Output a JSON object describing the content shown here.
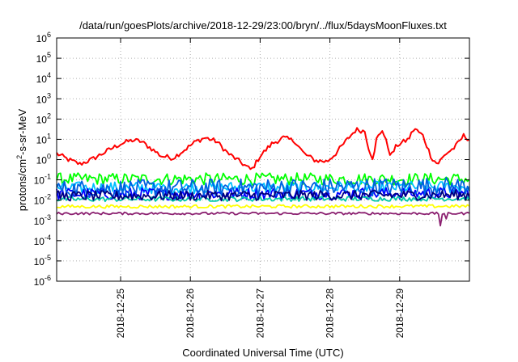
{
  "chart_data": {
    "type": "line",
    "title": "/data/run/goesPlots/archive/2018-12-29/23:00/bryn/../flux/5daysMoonFluxes.txt",
    "xlabel": "Coordinated Universal Time (UTC)",
    "ylabel": {
      "base": "protons/cm",
      "superscript": "2",
      "rest": "-s-sr-MeV"
    },
    "yscale": "log",
    "ylim": [
      1e-06,
      1000000.0
    ],
    "y_ticks": [
      {
        "base": "10",
        "exp": "-6",
        "value": 1e-06
      },
      {
        "base": "10",
        "exp": "-5",
        "value": 1e-05
      },
      {
        "base": "10",
        "exp": "-4",
        "value": 0.0001
      },
      {
        "base": "10",
        "exp": "-3",
        "value": 0.001
      },
      {
        "base": "10",
        "exp": "-2",
        "value": 0.01
      },
      {
        "base": "10",
        "exp": "-1",
        "value": 0.1
      },
      {
        "base": "10",
        "exp": "0",
        "value": 1
      },
      {
        "base": "10",
        "exp": "1",
        "value": 10
      },
      {
        "base": "10",
        "exp": "2",
        "value": 100
      },
      {
        "base": "10",
        "exp": "3",
        "value": 1000
      },
      {
        "base": "10",
        "exp": "4",
        "value": 10000
      },
      {
        "base": "10",
        "exp": "5",
        "value": 100000
      },
      {
        "base": "10",
        "exp": "6",
        "value": 1000000
      }
    ],
    "xlim": [
      "2018-12-24 02:00",
      "2018-12-30 00:00"
    ],
    "x_ticks": [
      {
        "label": "2018-12-25",
        "value": "2018-12-25 00:00"
      },
      {
        "label": "2018-12-26",
        "value": "2018-12-26 00:00"
      },
      {
        "label": "2018-12-27",
        "value": "2018-12-27 00:00"
      },
      {
        "label": "2018-12-28",
        "value": "2018-12-28 00:00"
      },
      {
        "label": "2018-12-29",
        "value": "2018-12-29 00:00"
      }
    ],
    "grid": true,
    "series": [
      {
        "color": "#ff0000",
        "noise": 0.12,
        "spikes": [],
        "points": [
          [
            "2018-12-24 02:00",
            2
          ],
          [
            "2018-12-24 06:00",
            1
          ],
          [
            "2018-12-24 10:00",
            0.6
          ],
          [
            "2018-12-24 14:00",
            1
          ],
          [
            "2018-12-24 20:00",
            3
          ],
          [
            "2018-12-25 00:00",
            6
          ],
          [
            "2018-12-25 04:00",
            9
          ],
          [
            "2018-12-25 07:00",
            8
          ],
          [
            "2018-12-25 10:00",
            4
          ],
          [
            "2018-12-25 14:00",
            1.5
          ],
          [
            "2018-12-25 18:00",
            1.2
          ],
          [
            "2018-12-25 22:00",
            3
          ],
          [
            "2018-12-26 02:00",
            8
          ],
          [
            "2018-12-26 05:00",
            12
          ],
          [
            "2018-12-26 09:00",
            8
          ],
          [
            "2018-12-26 13:00",
            2
          ],
          [
            "2018-12-26 17:00",
            0.8
          ],
          [
            "2018-12-26 21:00",
            0.3
          ],
          [
            "2018-12-27 00:00",
            1.5
          ],
          [
            "2018-12-27 04:00",
            6
          ],
          [
            "2018-12-27 08:00",
            12
          ],
          [
            "2018-12-27 12:00",
            8
          ],
          [
            "2018-12-27 15:00",
            2
          ],
          [
            "2018-12-27 19:00",
            0.9
          ],
          [
            "2018-12-27 23:00",
            0.8
          ],
          [
            "2018-12-28 02:00",
            2
          ],
          [
            "2018-12-28 06:00",
            10
          ],
          [
            "2018-12-28 09:00",
            30
          ],
          [
            "2018-12-28 12:00",
            25
          ],
          [
            "2018-12-28 13:30",
            3
          ],
          [
            "2018-12-28 15:00",
            1
          ],
          [
            "2018-12-28 16:00",
            10
          ],
          [
            "2018-12-28 18:00",
            30
          ],
          [
            "2018-12-28 21:00",
            1.5
          ],
          [
            "2018-12-28 23:00",
            5
          ],
          [
            "2018-12-29 03:00",
            10
          ],
          [
            "2018-12-29 05:00",
            35
          ],
          [
            "2018-12-29 08:00",
            15
          ],
          [
            "2018-12-29 11:00",
            1.2
          ],
          [
            "2018-12-29 13:00",
            0.6
          ],
          [
            "2018-12-29 16:00",
            2
          ],
          [
            "2018-12-29 19:00",
            4
          ],
          [
            "2018-12-29 22:00",
            15
          ],
          [
            "2018-12-30 00:00",
            10
          ]
        ]
      },
      {
        "color": "#00ff00",
        "noise": 0.3,
        "spikes": [],
        "points": [
          [
            "2018-12-24 02:00",
            0.11
          ],
          [
            "2018-12-30 00:00",
            0.11
          ]
        ]
      },
      {
        "color": "#00bfff",
        "noise": 0.3,
        "spikes": [],
        "points": [
          [
            "2018-12-24 02:00",
            0.04
          ],
          [
            "2018-12-30 00:00",
            0.045
          ]
        ]
      },
      {
        "color": "#0000ff",
        "noise": 0.3,
        "spikes": [],
        "points": [
          [
            "2018-12-24 02:00",
            0.02
          ],
          [
            "2018-12-30 00:00",
            0.022
          ]
        ]
      },
      {
        "color": "#0060e0",
        "noise": 0.45,
        "spikes": [],
        "points": [
          [
            "2018-12-24 02:00",
            0.035
          ],
          [
            "2018-12-30 00:00",
            0.05
          ]
        ]
      },
      {
        "color": "#00c8a8",
        "noise": 0.12,
        "spikes": [],
        "points": [
          [
            "2018-12-24 02:00",
            0.011
          ],
          [
            "2018-12-30 00:00",
            0.012
          ]
        ]
      },
      {
        "color": "#000080",
        "noise": 0.25,
        "spikes": [],
        "points": [
          [
            "2018-12-24 02:00",
            0.016
          ],
          [
            "2018-12-30 00:00",
            0.018
          ]
        ]
      },
      {
        "color": "#ffff00",
        "noise": 0.08,
        "spikes": [],
        "points": [
          [
            "2018-12-24 02:00",
            0.0048
          ],
          [
            "2018-12-30 00:00",
            0.005
          ]
        ]
      },
      {
        "color": "#8b2070",
        "noise": 0.06,
        "spikes": [
          [
            "2018-12-28 13:00",
            0.0011
          ],
          [
            "2018-12-29 16:00",
            0.0012
          ],
          [
            "2018-12-29 14:00",
            0.00055
          ]
        ],
        "points": [
          [
            "2018-12-24 02:00",
            0.0022
          ],
          [
            "2018-12-30 00:00",
            0.0022
          ]
        ]
      }
    ]
  }
}
